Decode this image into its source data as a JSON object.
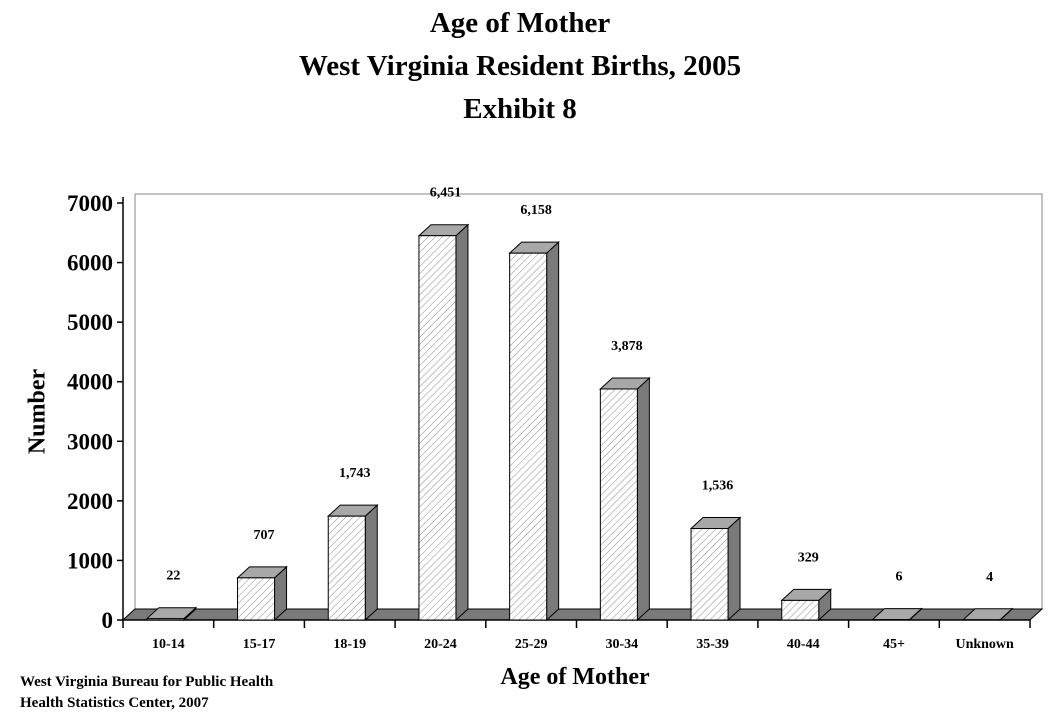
{
  "chart_data": {
    "type": "bar",
    "title_lines": [
      "Age of Mother",
      "West Virginia Resident Births, 2005",
      "Exhibit 8"
    ],
    "xlabel": "Age of Mother",
    "ylabel": "Number",
    "categories": [
      "10-14",
      "15-17",
      "18-19",
      "20-24",
      "25-29",
      "30-34",
      "35-39",
      "40-44",
      "45+",
      "Unknown"
    ],
    "values": [
      22,
      707,
      1743,
      6451,
      6158,
      3878,
      1536,
      329,
      6,
      4
    ],
    "value_labels": [
      "22",
      "707",
      "1,743",
      "6,451",
      "6,158",
      "3,878",
      "1,536",
      "329",
      "6",
      "4"
    ],
    "y_ticks": [
      "0",
      "1000",
      "2000",
      "3000",
      "4000",
      "5000",
      "6000",
      "7000"
    ],
    "ylim": [
      0,
      7000
    ],
    "grid": false,
    "bar_style": "3d-hatched",
    "colors": {
      "bar_face": "#ffffff",
      "bar_side": "#7a7a7a",
      "bar_top": "#a8a8a8",
      "floor": "#7a7a7a",
      "hatch": "#8c8c8c"
    }
  },
  "source": {
    "line1": "West Virginia Bureau for Public Health",
    "line2": "Health Statistics Center, 2007"
  }
}
